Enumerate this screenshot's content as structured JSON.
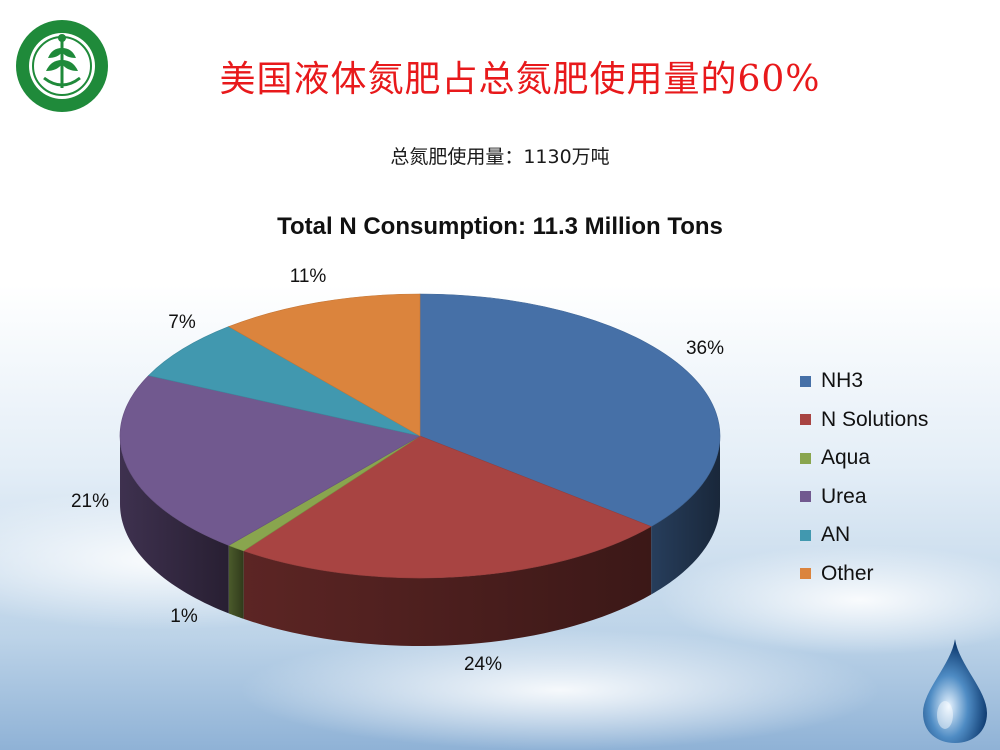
{
  "slide": {
    "title": "美国液体氮肥占总氮肥使用量的60%",
    "subtitle": "总氮肥使用量：1130万吨"
  },
  "chart_data": {
    "type": "pie",
    "title": "Total N Consumption: 11.3 Million Tons",
    "categories": [
      "NH3",
      "N Solutions",
      "Aqua",
      "Urea",
      "AN",
      "Other"
    ],
    "values": [
      36,
      24,
      1,
      21,
      7,
      11
    ],
    "labels": [
      "36%",
      "24%",
      "1%",
      "21%",
      "7%",
      "11%"
    ],
    "colors": [
      "#4670a7",
      "#a84442",
      "#89a54e",
      "#71598f",
      "#4198af",
      "#db843d"
    ],
    "legend_position": "right",
    "style": "3d"
  },
  "colors": {
    "title": "#e8191b",
    "logo_green": "#1f8a3a"
  }
}
